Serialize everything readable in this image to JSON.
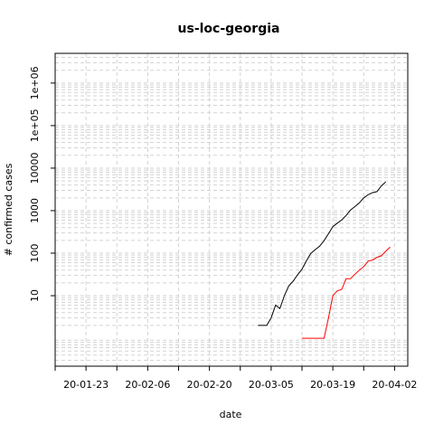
{
  "chart_data": {
    "type": "line",
    "title": "us-loc-georgia",
    "xlabel": "date",
    "ylabel": "# confirmed cases",
    "x_ticks": [
      "20-01-23",
      "20-02-06",
      "20-02-20",
      "20-03-05",
      "20-03-19",
      "20-04-02"
    ],
    "y_ticks": [
      "10",
      "100",
      "1000",
      "10000",
      "1e+05",
      "1e+06"
    ],
    "y_scale": "log",
    "x_range": [
      "20-01-16",
      "20-04-05"
    ],
    "y_range": [
      0.22,
      5000000
    ],
    "grid": true,
    "series": [
      {
        "color": "#000000",
        "points": [
          [
            "20-03-02",
            2
          ],
          [
            "20-03-03",
            2
          ],
          [
            "20-03-04",
            2
          ],
          [
            "20-03-05",
            3
          ],
          [
            "20-03-06",
            6
          ],
          [
            "20-03-07",
            5
          ],
          [
            "20-03-08",
            10
          ],
          [
            "20-03-09",
            17
          ],
          [
            "20-03-10",
            22
          ],
          [
            "20-03-11",
            31
          ],
          [
            "20-03-12",
            42
          ],
          [
            "20-03-13",
            66
          ],
          [
            "20-03-14",
            99
          ],
          [
            "20-03-15",
            121
          ],
          [
            "20-03-16",
            146
          ],
          [
            "20-03-17",
            197
          ],
          [
            "20-03-18",
            287
          ],
          [
            "20-03-19",
            420
          ],
          [
            "20-03-20",
            507
          ],
          [
            "20-03-21",
            600
          ],
          [
            "20-03-22",
            772
          ],
          [
            "20-03-23",
            1026
          ],
          [
            "20-03-24",
            1247
          ],
          [
            "20-03-25",
            1525
          ],
          [
            "20-03-26",
            2000
          ],
          [
            "20-03-27",
            2366
          ],
          [
            "20-03-28",
            2651
          ],
          [
            "20-03-29",
            2808
          ],
          [
            "20-03-30",
            3817
          ],
          [
            "20-03-31",
            4748
          ]
        ]
      },
      {
        "color": "#ff0000",
        "points": [
          [
            "20-03-12",
            1
          ],
          [
            "20-03-13",
            1
          ],
          [
            "20-03-14",
            1
          ],
          [
            "20-03-15",
            1
          ],
          [
            "20-03-16",
            1
          ],
          [
            "20-03-17",
            1
          ],
          [
            "20-03-18",
            3
          ],
          [
            "20-03-19",
            10
          ],
          [
            "20-03-20",
            13
          ],
          [
            "20-03-21",
            14
          ],
          [
            "20-03-22",
            25
          ],
          [
            "20-03-23",
            25
          ],
          [
            "20-03-24",
            32
          ],
          [
            "20-03-25",
            40
          ],
          [
            "20-03-26",
            48
          ],
          [
            "20-03-27",
            65
          ],
          [
            "20-03-28",
            69
          ],
          [
            "20-03-29",
            80
          ],
          [
            "20-03-30",
            87
          ],
          [
            "20-03-31",
            111
          ],
          [
            "20-04-01",
            139
          ]
        ]
      }
    ]
  }
}
